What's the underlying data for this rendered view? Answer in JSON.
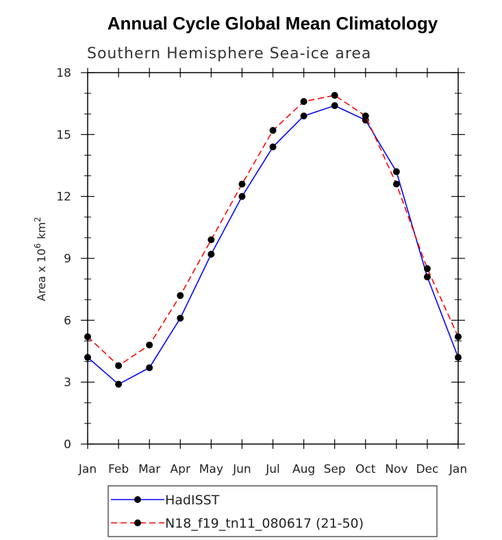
{
  "chart_data": {
    "type": "line",
    "title": "Annual Cycle Global Mean Climatology",
    "subtitle": "Southern Hemisphere Sea-ice area",
    "ylabel": "Area x 10",
    "ylabel_sup": "6",
    "ylabel_unit": "km",
    "ylabel_unit_sup": "2",
    "xlabel": "",
    "categories": [
      "Jan",
      "Feb",
      "Mar",
      "Apr",
      "May",
      "Jun",
      "Jul",
      "Aug",
      "Sep",
      "Oct",
      "Nov",
      "Dec",
      "Jan"
    ],
    "ylim": [
      0,
      18
    ],
    "yticks": [
      0,
      3,
      6,
      9,
      12,
      15,
      18
    ],
    "grid": false,
    "legend_position": "bottom",
    "series": [
      {
        "name": "HadISST",
        "color": "#0000ff",
        "style": "solid",
        "values": [
          4.2,
          2.9,
          3.7,
          6.1,
          9.2,
          12.0,
          14.4,
          15.9,
          16.4,
          15.7,
          13.2,
          8.1,
          4.2
        ]
      },
      {
        "name": "N18_f19_tn11_080617 (21-50)",
        "color": "#ff0000",
        "style": "dashed",
        "values": [
          5.2,
          3.8,
          4.8,
          7.2,
          9.9,
          12.6,
          15.2,
          16.6,
          16.9,
          15.9,
          12.6,
          8.5,
          5.2
        ]
      }
    ]
  }
}
